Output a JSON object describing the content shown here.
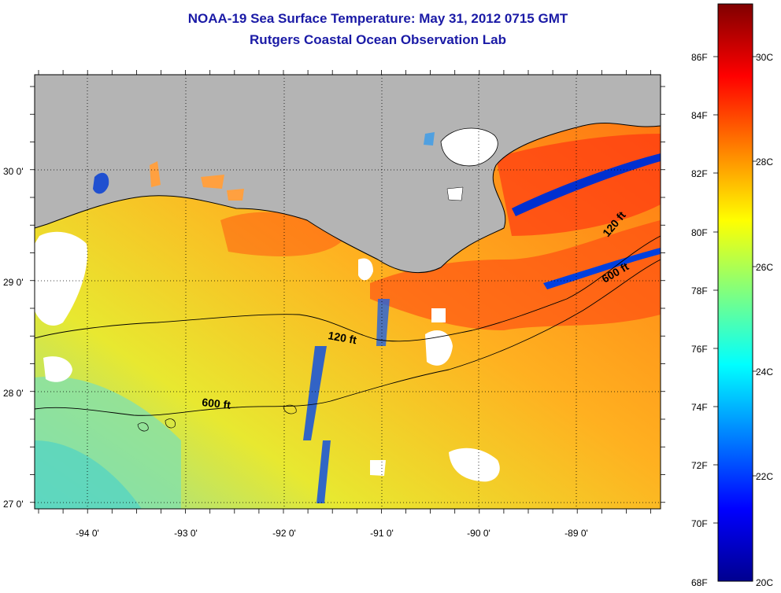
{
  "title": "NOAA-19 Sea Surface Temperature:  May 31, 2012 0715 GMT",
  "subtitle": "Rutgers Coastal Ocean Observation Lab",
  "map": {
    "lat_labels": [
      "30 0'",
      "29 0'",
      "28 0'",
      "27 0'"
    ],
    "lon_labels": [
      "-94 0'",
      "-93 0'",
      "-92 0'",
      "-91 0'",
      "-90 0'",
      "-89 0'"
    ],
    "contour_labels": [
      "120 ft",
      "600 ft",
      "120 ft",
      "600 ft"
    ],
    "colors": {
      "land": "#b4b4b4",
      "cloud": "#ffffff",
      "frame": "#000000"
    }
  },
  "colorbar": {
    "fahrenheit_labels": [
      "86F",
      "84F",
      "82F",
      "80F",
      "78F",
      "76F",
      "74F",
      "72F",
      "70F",
      "68F"
    ],
    "celsius_labels": [
      "30C",
      "28C",
      "26C",
      "24C",
      "22C",
      "20C"
    ],
    "colormap": "jet"
  }
}
